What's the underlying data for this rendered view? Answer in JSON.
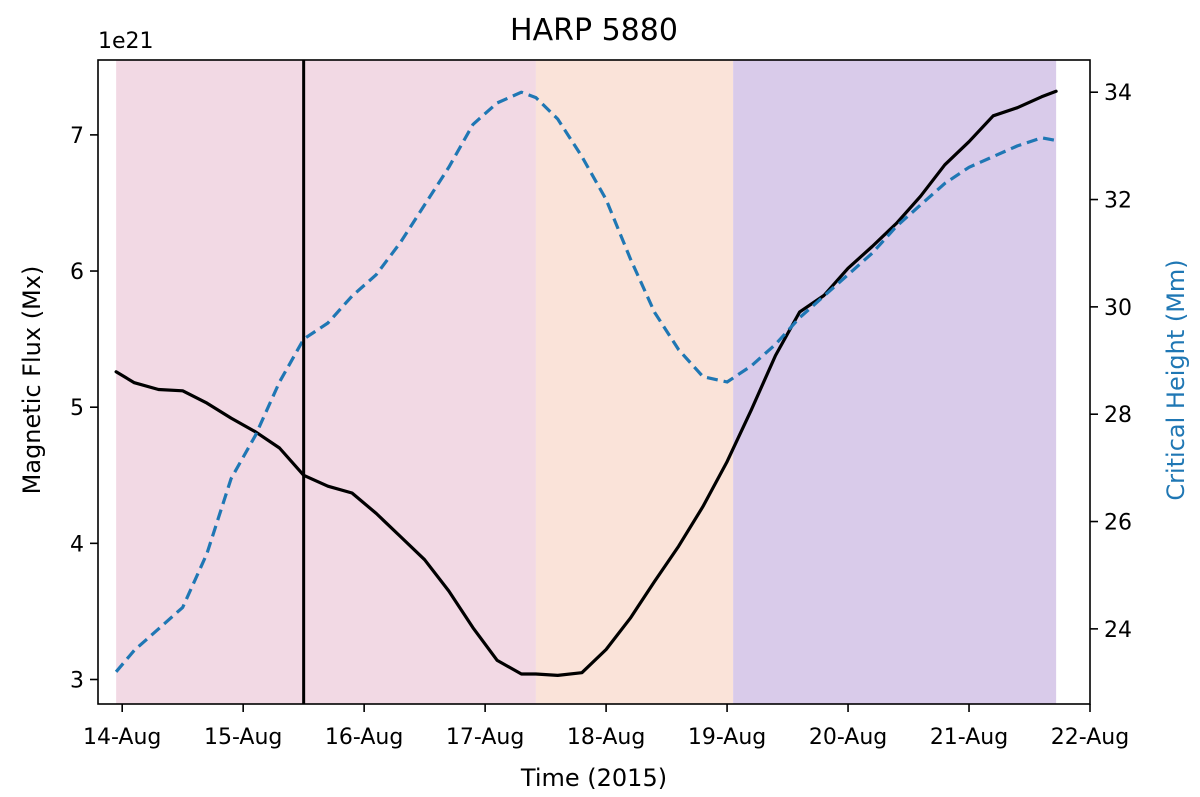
{
  "chart_data": {
    "type": "line",
    "title": "HARP 5880",
    "xlabel": "Time (2015)",
    "ylabel_left": "Magnetic Flux (Mx)",
    "ylabel_right": "Critical Height (Mm)",
    "left_offset_text": "1e21",
    "x_tick_labels": [
      "14-Aug",
      "15-Aug",
      "16-Aug",
      "17-Aug",
      "18-Aug",
      "19-Aug",
      "20-Aug",
      "21-Aug",
      "22-Aug"
    ],
    "x_unit": "days since 14-Aug-2015 00:00",
    "xlim": [
      -0.2,
      8.0
    ],
    "ylim_left": [
      2.82,
      7.55
    ],
    "ylim_right": [
      22.6,
      34.6
    ],
    "left_ticks": [
      3,
      4,
      5,
      6,
      7
    ],
    "right_ticks": [
      24,
      26,
      28,
      30,
      32,
      34
    ],
    "phases": [
      {
        "start": -0.05,
        "end": 3.42,
        "color": "#f2d9e4"
      },
      {
        "start": 3.42,
        "end": 5.05,
        "color": "#fae3d9"
      },
      {
        "start": 5.05,
        "end": 7.72,
        "color": "#d9cbea"
      }
    ],
    "event_line_x": 1.5,
    "series": [
      {
        "name": "Magnetic Flux",
        "axis": "left",
        "color": "#000000",
        "style": "solid",
        "x": [
          -0.05,
          0.1,
          0.3,
          0.5,
          0.7,
          0.9,
          1.1,
          1.3,
          1.5,
          1.7,
          1.9,
          2.1,
          2.3,
          2.5,
          2.7,
          2.9,
          3.1,
          3.3,
          3.42,
          3.6,
          3.8,
          4.0,
          4.2,
          4.4,
          4.6,
          4.8,
          5.0,
          5.2,
          5.4,
          5.6,
          5.8,
          6.0,
          6.2,
          6.4,
          6.6,
          6.8,
          7.0,
          7.2,
          7.4,
          7.6,
          7.72
        ],
        "values": [
          5.26,
          5.18,
          5.13,
          5.12,
          5.03,
          4.92,
          4.82,
          4.7,
          4.5,
          4.42,
          4.37,
          4.22,
          4.05,
          3.88,
          3.65,
          3.38,
          3.14,
          3.04,
          3.04,
          3.03,
          3.05,
          3.22,
          3.45,
          3.72,
          3.98,
          4.27,
          4.6,
          4.98,
          5.38,
          5.7,
          5.82,
          6.02,
          6.18,
          6.35,
          6.55,
          6.78,
          6.95,
          7.14,
          7.2,
          7.28,
          7.32
        ]
      },
      {
        "name": "Critical Height",
        "axis": "right",
        "color": "#1f77b4",
        "style": "dashed",
        "x": [
          -0.05,
          0.1,
          0.3,
          0.5,
          0.7,
          0.9,
          1.1,
          1.3,
          1.5,
          1.7,
          1.9,
          2.1,
          2.3,
          2.5,
          2.7,
          2.9,
          3.1,
          3.3,
          3.42,
          3.6,
          3.8,
          4.0,
          4.2,
          4.4,
          4.6,
          4.8,
          5.0,
          5.2,
          5.4,
          5.6,
          5.8,
          6.0,
          6.2,
          6.4,
          6.6,
          6.8,
          7.0,
          7.2,
          7.4,
          7.6,
          7.72
        ],
        "values": [
          23.2,
          23.6,
          24.0,
          24.4,
          25.4,
          26.8,
          27.6,
          28.6,
          29.4,
          29.7,
          30.2,
          30.6,
          31.2,
          31.9,
          32.6,
          33.4,
          33.8,
          34.0,
          33.9,
          33.5,
          32.8,
          32.0,
          30.9,
          29.9,
          29.2,
          28.7,
          28.6,
          28.9,
          29.3,
          29.8,
          30.2,
          30.6,
          31.0,
          31.5,
          31.9,
          32.3,
          32.6,
          32.8,
          33.0,
          33.15,
          33.1
        ]
      }
    ]
  }
}
